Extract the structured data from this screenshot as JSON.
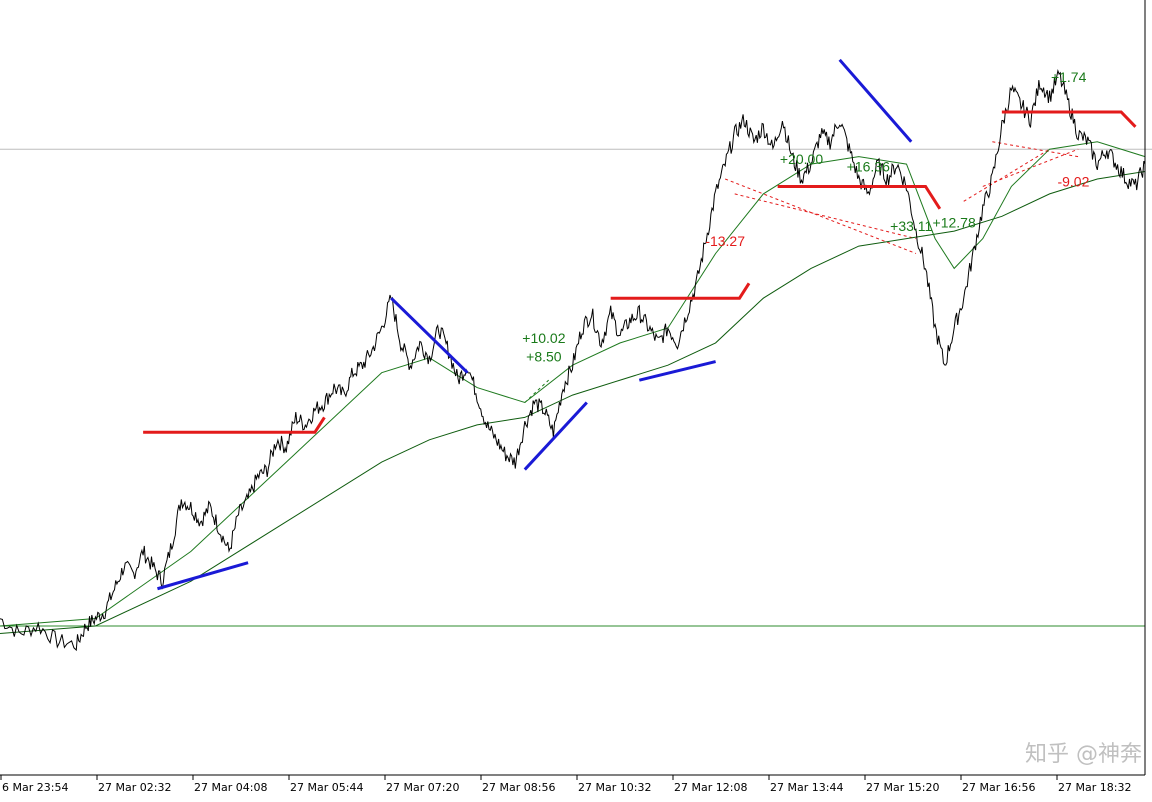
{
  "watermark": "知乎 @神奔",
  "colors": {
    "price": "#000000",
    "ma_fast": "#1f7a1f",
    "ma_slow": "#0f5c0f",
    "baseline": "#2e8b2e",
    "hline": "#bdbdbd",
    "support_red": "#e31b1b",
    "trend_blue": "#1a1ad6",
    "profit": "#1a7a1a",
    "loss": "#e31b1b",
    "trade_line_red": "#e31b1b",
    "trade_line_green": "#1a7a1a"
  },
  "chart_data": {
    "type": "line",
    "x_tick_labels": [
      "6 Mar 23:54",
      "27 Mar 02:32",
      "27 Mar 04:08",
      "27 Mar 05:44",
      "27 Mar 07:20",
      "27 Mar 08:56",
      "27 Mar 10:32",
      "27 Mar 12:08",
      "27 Mar 13:44",
      "27 Mar 15:20",
      "27 Mar 16:56",
      "27 Mar 18:32"
    ],
    "x_range": [
      0,
      120
    ],
    "y_range": [
      0,
      100
    ],
    "grid": false,
    "legend": "none",
    "price_series": [
      [
        0,
        21
      ],
      [
        2,
        19
      ],
      [
        4,
        20
      ],
      [
        6,
        18
      ],
      [
        8,
        17.5
      ],
      [
        9,
        20
      ],
      [
        10,
        21
      ],
      [
        11,
        22
      ],
      [
        12,
        25
      ],
      [
        13,
        28
      ],
      [
        14,
        27
      ],
      [
        15,
        30
      ],
      [
        16,
        28
      ],
      [
        17,
        26
      ],
      [
        18,
        31
      ],
      [
        19,
        37
      ],
      [
        20,
        36
      ],
      [
        21,
        34
      ],
      [
        22,
        36
      ],
      [
        23,
        33
      ],
      [
        24,
        30
      ],
      [
        25,
        35
      ],
      [
        26,
        37
      ],
      [
        27,
        40
      ],
      [
        28,
        41
      ],
      [
        29,
        45
      ],
      [
        30,
        44
      ],
      [
        31,
        48
      ],
      [
        32,
        47
      ],
      [
        33,
        49
      ],
      [
        34,
        50
      ],
      [
        35,
        52
      ],
      [
        36,
        51
      ],
      [
        37,
        54
      ],
      [
        38,
        55
      ],
      [
        39,
        57
      ],
      [
        40,
        60
      ],
      [
        41,
        64
      ],
      [
        42,
        58
      ],
      [
        43,
        55
      ],
      [
        44,
        58
      ],
      [
        45,
        56
      ],
      [
        46,
        60
      ],
      [
        47,
        57
      ],
      [
        48,
        53
      ],
      [
        49,
        55
      ],
      [
        50,
        51
      ],
      [
        51,
        47
      ],
      [
        52,
        45
      ],
      [
        53,
        43
      ],
      [
        54,
        42
      ],
      [
        55,
        47
      ],
      [
        56,
        50
      ],
      [
        57,
        49
      ],
      [
        58,
        46
      ],
      [
        59,
        52
      ],
      [
        60,
        55
      ],
      [
        61,
        60
      ],
      [
        62,
        62
      ],
      [
        63,
        58
      ],
      [
        64,
        62
      ],
      [
        65,
        59
      ],
      [
        66,
        61
      ],
      [
        67,
        62
      ],
      [
        68,
        60
      ],
      [
        69,
        58
      ],
      [
        70,
        60
      ],
      [
        71,
        58
      ],
      [
        72,
        62
      ],
      [
        73,
        66
      ],
      [
        74,
        72
      ],
      [
        75,
        78
      ],
      [
        76,
        82
      ],
      [
        77,
        86
      ],
      [
        78,
        88
      ],
      [
        79,
        85
      ],
      [
        80,
        87
      ],
      [
        81,
        84
      ],
      [
        82,
        88
      ],
      [
        83,
        83
      ],
      [
        84,
        80
      ],
      [
        85,
        82
      ],
      [
        86,
        86
      ],
      [
        87,
        85
      ],
      [
        88,
        88
      ],
      [
        89,
        84
      ],
      [
        90,
        80
      ],
      [
        91,
        78
      ],
      [
        92,
        82
      ],
      [
        93,
        80
      ],
      [
        94,
        82
      ],
      [
        95,
        79
      ],
      [
        96,
        73
      ],
      [
        97,
        68
      ],
      [
        98,
        60
      ],
      [
        99,
        55
      ],
      [
        100,
        60
      ],
      [
        101,
        64
      ],
      [
        102,
        70
      ],
      [
        103,
        76
      ],
      [
        104,
        80
      ],
      [
        105,
        87
      ],
      [
        106,
        92
      ],
      [
        107,
        90
      ],
      [
        108,
        88
      ],
      [
        109,
        93
      ],
      [
        110,
        91
      ],
      [
        111,
        94
      ],
      [
        112,
        90
      ],
      [
        113,
        86
      ],
      [
        114,
        85
      ],
      [
        115,
        82
      ],
      [
        116,
        84
      ],
      [
        117,
        82
      ],
      [
        118,
        80
      ],
      [
        119,
        79
      ],
      [
        120,
        82
      ]
    ],
    "ma_fast": [
      [
        0,
        20
      ],
      [
        10,
        21
      ],
      [
        20,
        30
      ],
      [
        30,
        42
      ],
      [
        40,
        54
      ],
      [
        45,
        56
      ],
      [
        50,
        52
      ],
      [
        55,
        50
      ],
      [
        60,
        55
      ],
      [
        65,
        58
      ],
      [
        70,
        60
      ],
      [
        75,
        70
      ],
      [
        80,
        78
      ],
      [
        85,
        82
      ],
      [
        90,
        83
      ],
      [
        95,
        82
      ],
      [
        98,
        72
      ],
      [
        100,
        68
      ],
      [
        103,
        72
      ],
      [
        106,
        79
      ],
      [
        110,
        84
      ],
      [
        115,
        85
      ],
      [
        120,
        83
      ]
    ],
    "ma_slow": [
      [
        0,
        19
      ],
      [
        10,
        20
      ],
      [
        20,
        26
      ],
      [
        30,
        34
      ],
      [
        40,
        42
      ],
      [
        45,
        45
      ],
      [
        50,
        47
      ],
      [
        55,
        48
      ],
      [
        60,
        51
      ],
      [
        65,
        53
      ],
      [
        70,
        55
      ],
      [
        75,
        58
      ],
      [
        80,
        64
      ],
      [
        85,
        68
      ],
      [
        90,
        71
      ],
      [
        95,
        72
      ],
      [
        100,
        73
      ],
      [
        105,
        75
      ],
      [
        110,
        78
      ],
      [
        115,
        80
      ],
      [
        120,
        81
      ]
    ],
    "baseline_y": 20,
    "hline_y": 84,
    "support_lines": [
      {
        "x1": 15,
        "y1": 46,
        "x2": 33,
        "y2": 46,
        "x3": 34,
        "y3": 48
      },
      {
        "x1": 64,
        "y1": 64,
        "x2": 77.5,
        "y2": 64,
        "x3": 78.5,
        "y3": 66
      },
      {
        "x1": 81.5,
        "y1": 79,
        "x2": 97,
        "y2": 79,
        "x3": 98.5,
        "y3": 76
      },
      {
        "x1": 105,
        "y1": 89,
        "x2": 117.5,
        "y2": 89,
        "x3": 119,
        "y3": 87
      }
    ],
    "trend_lines": [
      {
        "x1": 16.5,
        "y1": 25,
        "x2": 26,
        "y2": 28.5
      },
      {
        "x1": 41,
        "y1": 64,
        "x2": 49,
        "y2": 54
      },
      {
        "x1": 55,
        "y1": 41,
        "x2": 61.5,
        "y2": 50
      },
      {
        "x1": 67,
        "y1": 53,
        "x2": 75,
        "y2": 55.5
      },
      {
        "x1": 88,
        "y1": 96,
        "x2": 95.5,
        "y2": 85
      }
    ],
    "trade_lines": [
      {
        "x1": 55,
        "y1": 50,
        "x2": 57.5,
        "y2": 53,
        "color": "green"
      },
      {
        "x1": 76,
        "y1": 80,
        "x2": 96,
        "y2": 70,
        "color": "red"
      },
      {
        "x1": 77,
        "y1": 78,
        "x2": 96,
        "y2": 72,
        "color": "red"
      },
      {
        "x1": 101,
        "y1": 77,
        "x2": 110,
        "y2": 84,
        "color": "red"
      },
      {
        "x1": 103,
        "y1": 79,
        "x2": 113,
        "y2": 84,
        "color": "red"
      },
      {
        "x1": 104,
        "y1": 85,
        "x2": 113,
        "y2": 83,
        "color": "red"
      }
    ],
    "annotations": [
      {
        "text": "+10.02",
        "x": 57,
        "y": 58,
        "kind": "profit"
      },
      {
        "text": "+8.50",
        "x": 57,
        "y": 55.5,
        "kind": "profit"
      },
      {
        "text": "-13.27",
        "x": 76,
        "y": 71,
        "kind": "loss"
      },
      {
        "text": "+20.00",
        "x": 84,
        "y": 82,
        "kind": "profit"
      },
      {
        "text": "+16.36",
        "x": 91,
        "y": 81,
        "kind": "profit"
      },
      {
        "text": "+33.11",
        "x": 95.5,
        "y": 73,
        "kind": "profit"
      },
      {
        "text": "+12.78",
        "x": 100,
        "y": 73.5,
        "kind": "profit"
      },
      {
        "text": "+1.74",
        "x": 112,
        "y": 93,
        "kind": "profit"
      },
      {
        "text": "-9.02",
        "x": 112.5,
        "y": 79,
        "kind": "loss"
      }
    ]
  }
}
